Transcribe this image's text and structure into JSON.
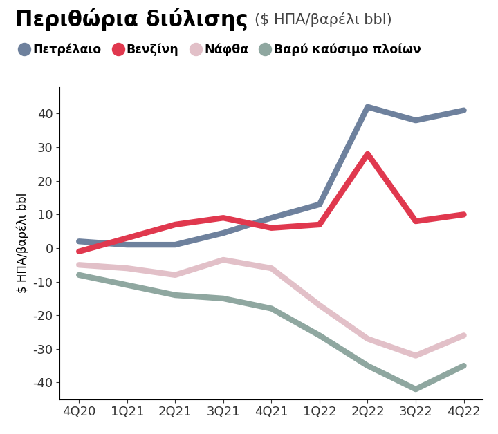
{
  "chart_data": {
    "type": "line",
    "title": "Περιθώρια διύλισης",
    "subtitle": "($ ΗΠΑ/βαρέλι bbl)",
    "y_label": "$ ΗΠΑ/βαρέλι bbl",
    "categories": [
      "4Q20",
      "1Q21",
      "2Q21",
      "3Q21",
      "4Q21",
      "1Q22",
      "2Q22",
      "3Q22",
      "4Q22"
    ],
    "series": [
      {
        "name": "Πετρέλαιο",
        "color": "#6e819d",
        "values": [
          2,
          1,
          1,
          4.5,
          9,
          13,
          42,
          38,
          41
        ]
      },
      {
        "name": "Βενζίνη",
        "color": "#e0384e",
        "values": [
          -1,
          3,
          7,
          9,
          6,
          7,
          28,
          8,
          10
        ]
      },
      {
        "name": "Νάφθα",
        "color": "#e2c0c8",
        "values": [
          -5,
          -6,
          -8,
          -3.5,
          -6,
          -17,
          -27,
          -32,
          -26
        ]
      },
      {
        "name": "Βαρύ καύσιμο πλοίων",
        "color": "#8fa7a0",
        "values": [
          -8,
          -11,
          -14,
          -15,
          -18,
          -26,
          -35,
          -42,
          -35
        ]
      }
    ],
    "ylim": [
      -45,
      48
    ],
    "yticks": [
      -40,
      -30,
      -20,
      -10,
      0,
      10,
      20,
      30,
      40
    ],
    "grid": false,
    "legend": "upper left"
  }
}
